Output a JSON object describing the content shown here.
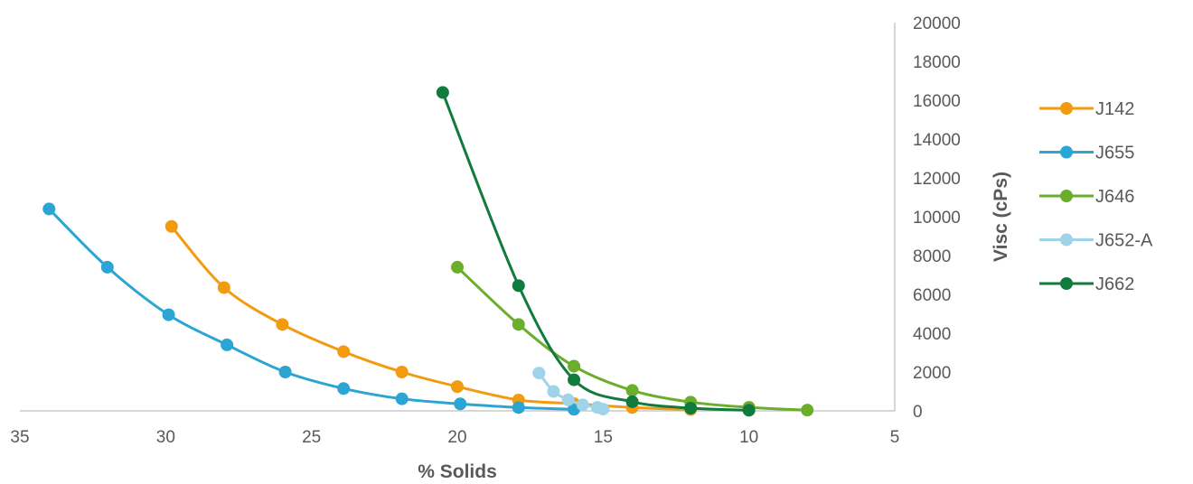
{
  "chart_data": {
    "type": "scatter",
    "xlabel": "% Solids",
    "ylabel": "Visc (cPs)",
    "xlim": [
      5,
      35
    ],
    "x_reversed": true,
    "ylim": [
      0,
      20000
    ],
    "x_ticks": [
      "35",
      "30",
      "25",
      "20",
      "15",
      "10",
      "5"
    ],
    "y_ticks": [
      "0",
      "2000",
      "4000",
      "6000",
      "8000",
      "10000",
      "12000",
      "14000",
      "16000",
      "18000",
      "20000"
    ],
    "grid": false,
    "y_axis_side": "right",
    "legend_position": "right",
    "series": [
      {
        "name": "J142",
        "color": "#F29B0F",
        "points": [
          [
            29.8,
            9500
          ],
          [
            28.0,
            6350
          ],
          [
            26.0,
            4450
          ],
          [
            23.9,
            3050
          ],
          [
            21.9,
            2000
          ],
          [
            20.0,
            1250
          ],
          [
            17.9,
            560
          ],
          [
            16.0,
            370
          ],
          [
            14.0,
            170
          ],
          [
            12.0,
            70
          ]
        ]
      },
      {
        "name": "J655",
        "color": "#2BA5D3",
        "points": [
          [
            34.0,
            10400
          ],
          [
            32.0,
            7400
          ],
          [
            29.9,
            4950
          ],
          [
            27.9,
            3400
          ],
          [
            25.9,
            2000
          ],
          [
            23.9,
            1150
          ],
          [
            21.9,
            620
          ],
          [
            19.9,
            360
          ],
          [
            17.9,
            170
          ],
          [
            16.0,
            80
          ]
        ]
      },
      {
        "name": "J646",
        "color": "#6AAE2C",
        "points": [
          [
            20.0,
            7400
          ],
          [
            17.9,
            4450
          ],
          [
            16.0,
            2300
          ],
          [
            14.0,
            1050
          ],
          [
            12.0,
            450
          ],
          [
            10.0,
            180
          ],
          [
            8.0,
            40
          ]
        ]
      },
      {
        "name": "J652-A",
        "color": "#9FD3E8",
        "points": [
          [
            17.2,
            1950
          ],
          [
            16.7,
            1000
          ],
          [
            16.2,
            570
          ],
          [
            15.7,
            310
          ],
          [
            15.2,
            180
          ],
          [
            15.0,
            90
          ]
        ]
      },
      {
        "name": "J662",
        "color": "#117A3D",
        "points": [
          [
            20.5,
            16400
          ],
          [
            17.9,
            6450
          ],
          [
            16.0,
            1600
          ],
          [
            14.0,
            470
          ],
          [
            12.0,
            140
          ],
          [
            10.0,
            30
          ]
        ]
      }
    ]
  }
}
